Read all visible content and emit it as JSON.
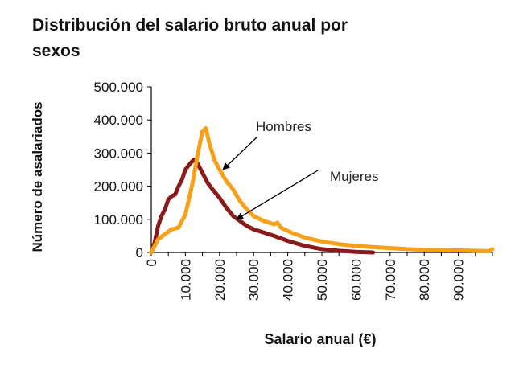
{
  "chart_data": {
    "type": "line",
    "title_line1": "Distribución del salario bruto anual por",
    "title_line2": "sexos",
    "xlabel": "Salario anual (€)",
    "ylabel": "Número de asalariados",
    "xlim": [
      0,
      100000
    ],
    "ylim": [
      0,
      500000
    ],
    "x_ticks": [
      {
        "value": 0,
        "label": "0"
      },
      {
        "value": 10000,
        "label": "10.000"
      },
      {
        "value": 20000,
        "label": "20.000"
      },
      {
        "value": 30000,
        "label": "30.000"
      },
      {
        "value": 40000,
        "label": "40.000"
      },
      {
        "value": 50000,
        "label": "50.000"
      },
      {
        "value": 60000,
        "label": "60.000"
      },
      {
        "value": 70000,
        "label": "70.000"
      },
      {
        "value": 80000,
        "label": "80.000"
      },
      {
        "value": 90000,
        "label": "90.000"
      }
    ],
    "y_ticks": [
      {
        "value": 0,
        "label": "0"
      },
      {
        "value": 100000,
        "label": "100.000"
      },
      {
        "value": 200000,
        "label": "200.000"
      },
      {
        "value": 300000,
        "label": "300.000"
      },
      {
        "value": 400000,
        "label": "400.000"
      },
      {
        "value": 500000,
        "label": "500.000"
      }
    ],
    "grid": false,
    "legend": "annotations with arrows",
    "series": [
      {
        "name": "Hombres",
        "color": "#f7a11a",
        "x": [
          0,
          1000,
          2000,
          4000,
          6000,
          8000,
          10000,
          12000,
          13500,
          15000,
          16000,
          17000,
          18500,
          20000,
          22000,
          24000,
          26000,
          28000,
          30000,
          33000,
          36000,
          37000,
          38000,
          41000,
          45000,
          50000,
          55000,
          60000,
          65000,
          70000,
          75000,
          80000,
          85000,
          90000,
          95000,
          99000,
          100000
        ],
        "values": [
          0,
          20000,
          40000,
          55000,
          70000,
          75000,
          115000,
          205000,
          290000,
          365000,
          375000,
          330000,
          280000,
          250000,
          215000,
          190000,
          155000,
          130000,
          110000,
          95000,
          85000,
          90000,
          75000,
          60000,
          45000,
          33000,
          25000,
          20000,
          16000,
          13000,
          10000,
          8000,
          7000,
          6000,
          5000,
          4000,
          10000
        ]
      },
      {
        "name": "Mujeres",
        "color": "#8b1a1a",
        "x": [
          0,
          1000,
          2000,
          3000,
          4000,
          5000,
          6000,
          7000,
          8000,
          9000,
          10000,
          11500,
          12500,
          13500,
          15000,
          16500,
          18000,
          20000,
          22000,
          24000,
          26000,
          28000,
          30000,
          33000,
          36000,
          40000,
          45000,
          50000,
          55000,
          60000,
          65000
        ],
        "values": [
          0,
          30000,
          80000,
          110000,
          130000,
          160000,
          170000,
          175000,
          200000,
          220000,
          250000,
          270000,
          280000,
          270000,
          240000,
          210000,
          190000,
          165000,
          135000,
          110000,
          95000,
          80000,
          70000,
          60000,
          50000,
          35000,
          20000,
          10000,
          5000,
          2000,
          0
        ]
      }
    ],
    "annotations": [
      {
        "text": "Hombres",
        "series": "Hombres",
        "arrow_to_x": 21000,
        "arrow_to_y": 250000
      },
      {
        "text": "Mujeres",
        "series": "Mujeres",
        "arrow_to_x": 25000,
        "arrow_to_y": 100000
      }
    ]
  }
}
